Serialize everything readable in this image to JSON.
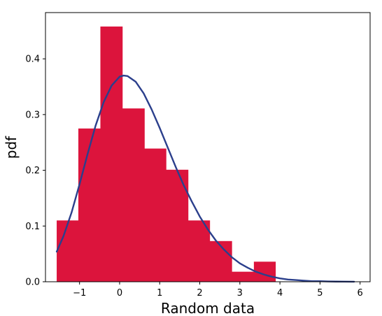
{
  "chart_data": {
    "type": "bar",
    "xlabel": "Random data",
    "ylabel": "pdf",
    "xlim": [
      -1.85,
      6.25
    ],
    "ylim": [
      0,
      0.483
    ],
    "xticks": [
      -1,
      0,
      1,
      2,
      3,
      4,
      5,
      6
    ],
    "yticks": [
      0.0,
      0.1,
      0.2,
      0.3,
      0.4
    ],
    "xtick_labels": [
      "−1",
      "0",
      "1",
      "2",
      "3",
      "4",
      "5",
      "6"
    ],
    "ytick_labels": [
      "0.0",
      "0.1",
      "0.2",
      "0.3",
      "0.4"
    ],
    "histogram": {
      "bin_edges": [
        -1.57,
        -1.03,
        -0.48,
        0.07,
        0.62,
        1.16,
        1.71,
        2.25,
        2.8,
        3.35,
        3.89
      ],
      "values": [
        0.11,
        0.275,
        0.458,
        0.311,
        0.239,
        0.201,
        0.11,
        0.073,
        0.018,
        0.036
      ],
      "color": "#dc143c"
    },
    "curve": {
      "x": [
        -1.57,
        -1.4,
        -1.2,
        -1.0,
        -0.8,
        -0.6,
        -0.4,
        -0.2,
        0.0,
        0.1,
        0.2,
        0.4,
        0.6,
        0.8,
        1.0,
        1.2,
        1.4,
        1.6,
        1.8,
        2.0,
        2.2,
        2.4,
        2.6,
        2.8,
        3.0,
        3.2,
        3.4,
        3.6,
        3.8,
        4.0,
        4.2,
        4.4,
        4.6,
        4.8,
        5.0,
        5.2,
        5.4,
        5.6,
        5.85
      ],
      "y": [
        0.054,
        0.082,
        0.124,
        0.175,
        0.229,
        0.28,
        0.322,
        0.352,
        0.368,
        0.37,
        0.369,
        0.359,
        0.338,
        0.309,
        0.276,
        0.241,
        0.206,
        0.173,
        0.144,
        0.117,
        0.094,
        0.074,
        0.058,
        0.044,
        0.033,
        0.025,
        0.018,
        0.013,
        0.009,
        0.006,
        0.004,
        0.003,
        0.002,
        0.001,
        0.001,
        0.0005,
        0.0003,
        0.0002,
        0.0001
      ],
      "color": "#2b3f8c"
    },
    "grid": false,
    "legend": "none"
  }
}
